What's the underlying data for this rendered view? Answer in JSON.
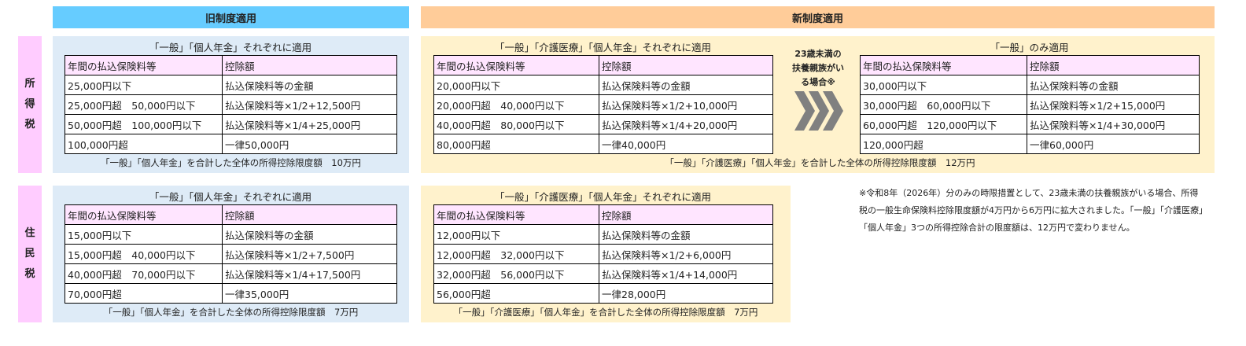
{
  "headers": {
    "old": "旧制度適用",
    "new": "新制度適用"
  },
  "side_labels": {
    "income_tax": [
      "所",
      "得",
      "税"
    ],
    "resident_tax": [
      "住",
      "民",
      "税"
    ]
  },
  "colors": {
    "old_header": "#66ccff",
    "new_header": "#ffcc99",
    "old_panel": "#deebf7",
    "new_panel": "#fff2cc",
    "side": "#ffccff",
    "table_header": "#ffe5ff"
  },
  "table_headers": [
    "年間の払込保険料等",
    "控除額"
  ],
  "old_income": {
    "title": "「一般」「個人年金」それぞれに適用",
    "rows": [
      [
        "25,000円以下",
        "払込保険料等の金額"
      ],
      [
        "25,000円超　50,000円以下",
        "払込保険料等×1/2+12,500円"
      ],
      [
        "50,000円超　100,000円以下",
        "払込保険料等×1/4+25,000円"
      ],
      [
        "100,000円超",
        "一律50,000円"
      ]
    ],
    "footer": "「一般」「個人年金」を合計した全体の所得控除限度額　10万円"
  },
  "old_resident": {
    "title": "「一般」「個人年金」それぞれに適用",
    "rows": [
      [
        "15,000円以下",
        "払込保険料等の金額"
      ],
      [
        "15,000円超　40,000円以下",
        "払込保険料等×1/2+7,500円"
      ],
      [
        "40,000円超　70,000円以下",
        "払込保険料等×1/4+17,500円"
      ],
      [
        "70,000円超",
        "一律35,000円"
      ]
    ],
    "footer": "「一般」「個人年金」を合計した全体の所得控除限度額　7万円"
  },
  "new_income": {
    "title": "「一般」「介護医療」「個人年金」それぞれに適用",
    "rows": [
      [
        "20,000円以下",
        "払込保険料等の金額"
      ],
      [
        "20,000円超　40,000円以下",
        "払込保険料等×1/2+10,000円"
      ],
      [
        "40,000円超　80,000円以下",
        "払込保険料等×1/4+20,000円"
      ],
      [
        "80,000円超",
        "一律40,000円"
      ]
    ],
    "footer": "「一般」「介護医療」「個人年金」を合計した全体の所得控除限度額　12万円"
  },
  "special": {
    "arrow_label": "23歳未満の扶養親族がいる場合※",
    "arrow_icon": "triple-chevron-right",
    "title": "「一般」のみ適用",
    "rows": [
      [
        "30,000円以下",
        "払込保険料等の金額"
      ],
      [
        "30,000円超　60,000円以下",
        "払込保険料等×1/2+15,000円"
      ],
      [
        "60,000円超　120,000円以下",
        "払込保険料等×1/4+30,000円"
      ],
      [
        "120,000円超",
        "一律60,000円"
      ]
    ]
  },
  "new_resident": {
    "title": "「一般」「介護医療」「個人年金」それぞれに適用",
    "rows": [
      [
        "12,000円以下",
        "払込保険料等の金額"
      ],
      [
        "12,000円超　32,000円以下",
        "払込保険料等×1/2+6,000円"
      ],
      [
        "32,000円超　56,000円以下",
        "払込保険料等×1/4+14,000円"
      ],
      [
        "56,000円超",
        "一律28,000円"
      ]
    ],
    "footer": "「一般」「介護医療」「個人年金」を合計した全体の所得控除限度額　7万円"
  },
  "note": "※令和8年（2026年）分のみの時限措置として、23歳未満の扶養親族がいる場合、所得税の一般生命保険料控除限度額が4万円から6万円に拡大されました。「一般」「介護医療」「個人年金」3つの所得控除合計の限度額は、12万円で変わりません。"
}
